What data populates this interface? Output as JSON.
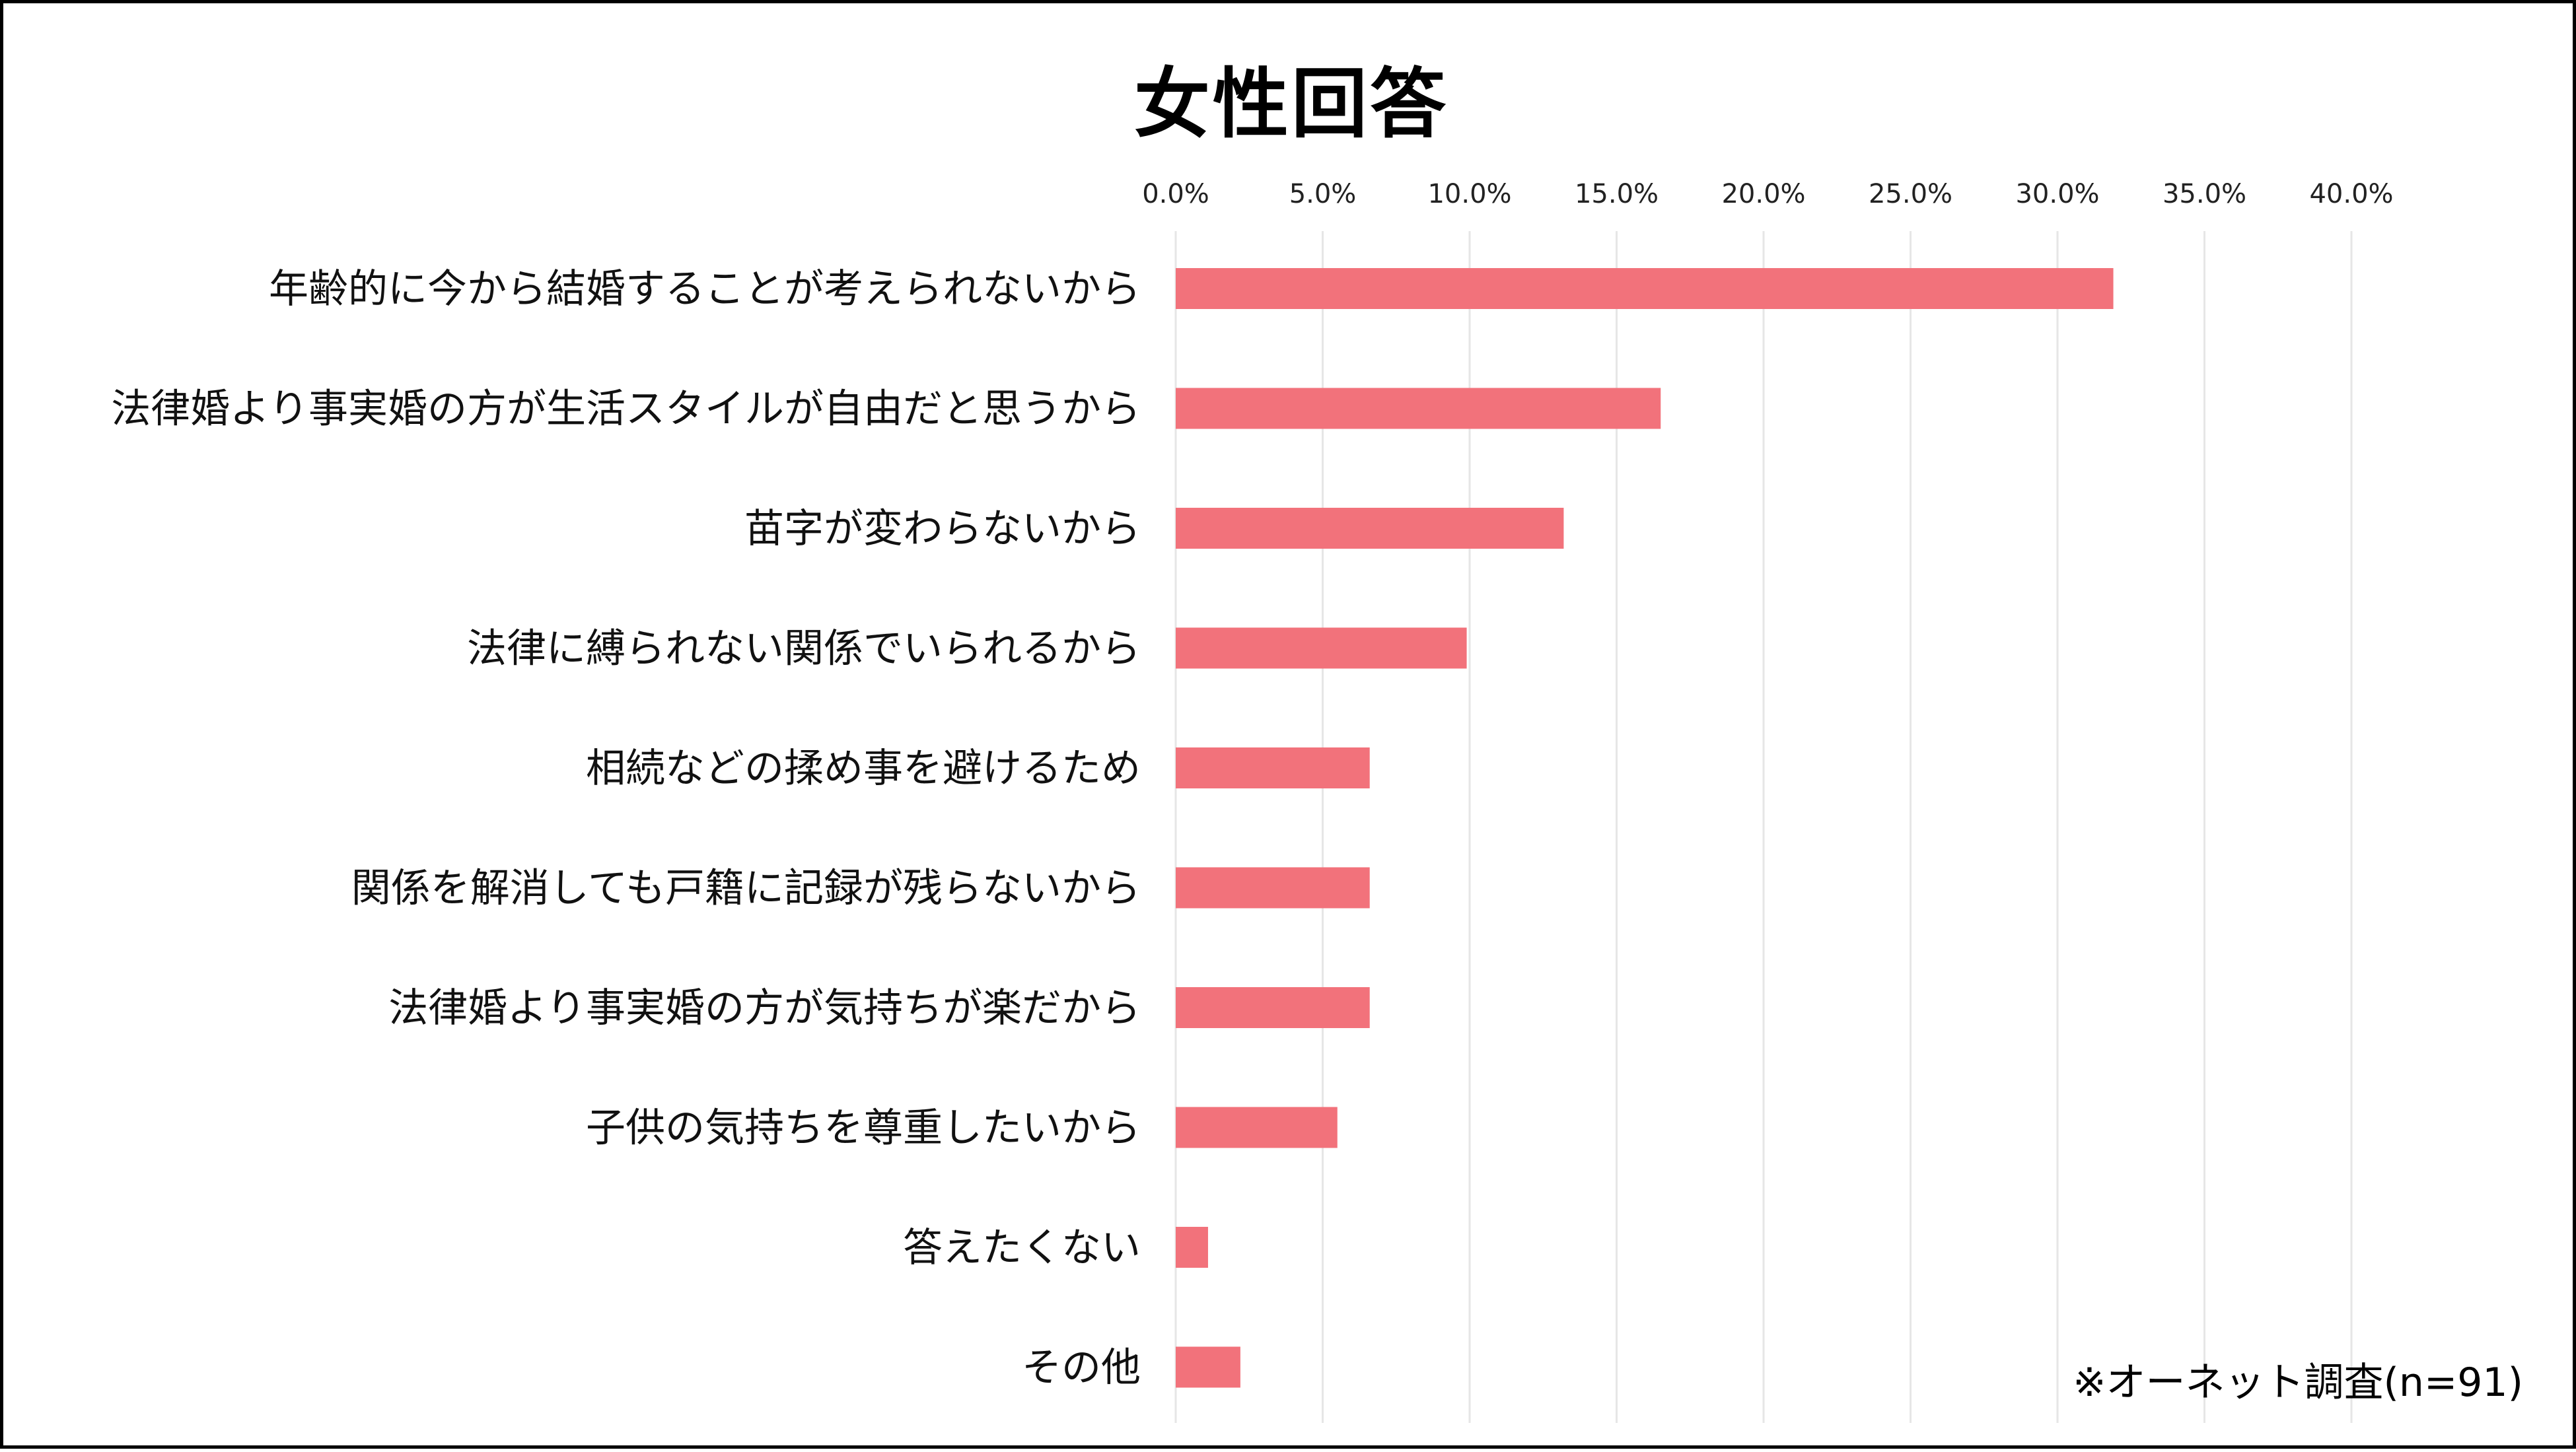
{
  "chart_data": {
    "type": "bar",
    "orientation": "horizontal",
    "title": "女性回答",
    "categories": [
      "年齢的に今から結婚することが考えられないから",
      "法律婚より事実婚の方が生活スタイルが自由だと思うから",
      "苗字が変わらないから",
      "法律に縛られない関係でいられるから",
      "相続などの揉め事を避けるため",
      "関係を解消しても戸籍に記録が残らないから",
      "法律婚より事実婚の方が気持ちが楽だから",
      "子供の気持ちを尊重したいから",
      "答えたくない",
      "その他"
    ],
    "values": [
      31.9,
      16.5,
      13.2,
      9.9,
      6.6,
      6.6,
      6.6,
      5.5,
      1.1,
      2.2
    ],
    "xlim": [
      0,
      40
    ],
    "x_ticks": [
      "0.0%",
      "5.0%",
      "10.0%",
      "15.0%",
      "20.0%",
      "25.0%",
      "30.0%",
      "35.0%",
      "40.0%"
    ],
    "x_axis_position": "top",
    "grid": true,
    "bar_color": "#f2727b",
    "grid_color": "#e6e6e6"
  },
  "footnote": "※オーネット調査(n=91)"
}
